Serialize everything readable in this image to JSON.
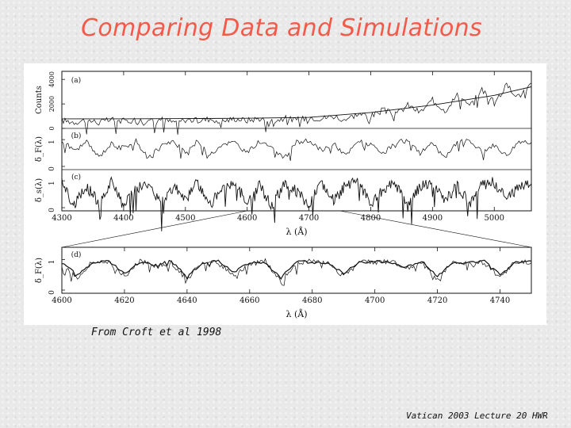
{
  "slide": {
    "title": "Comparing Data and Simulations",
    "credit": "From Croft et al 1998",
    "footer": "Vatican 2003 Lecture 20 HWR"
  },
  "chart_data": [
    {
      "type": "line",
      "panel_label": "(a)",
      "ylabel": "Counts",
      "yticks": [
        "0",
        "2000",
        "4000"
      ],
      "ylim": [
        0,
        4400
      ],
      "xlim": [
        4300,
        5060
      ],
      "xticks": [
        4300,
        4400,
        4500,
        4600,
        4700,
        4800,
        4900,
        5000
      ],
      "series": [
        {
          "style": "spectrum",
          "x": [
            4300,
            4320,
            4340,
            4360,
            4380,
            4400,
            4420,
            4440,
            4460,
            4480,
            4500,
            4520,
            4540,
            4560,
            4580,
            4600,
            4620,
            4640,
            4660,
            4680,
            4700,
            4720,
            4740,
            4760,
            4780,
            4800,
            4820,
            4840,
            4860,
            4880,
            4900,
            4920,
            4940,
            4960,
            4980,
            5000,
            5020,
            5040,
            5060
          ],
          "y": [
            650,
            520,
            700,
            480,
            720,
            600,
            700,
            560,
            760,
            500,
            740,
            620,
            790,
            580,
            800,
            650,
            820,
            600,
            840,
            680,
            900,
            820,
            1000,
            760,
            1200,
            980,
            1500,
            1100,
            1900,
            1300,
            2300,
            1500,
            2700,
            1800,
            3200,
            2100,
            3500,
            2600,
            3700
          ]
        },
        {
          "style": "continuum",
          "x": [
            4300,
            4400,
            4500,
            4600,
            4700,
            4800,
            4900,
            5000,
            5060
          ],
          "y": [
            780,
            780,
            800,
            830,
            900,
            1300,
            1900,
            2700,
            3400
          ]
        }
      ]
    },
    {
      "type": "line",
      "panel_label": "(b)",
      "ylabel": "δ_F(λ)",
      "yticks": [
        "0",
        "1"
      ],
      "ylim": [
        0,
        1.3
      ],
      "x": [
        4300,
        4320,
        4340,
        4360,
        4380,
        4400,
        4420,
        4440,
        4460,
        4480,
        4500,
        4520,
        4540,
        4560,
        4580,
        4600,
        4620,
        4640,
        4660,
        4680,
        4700,
        4720,
        4740,
        4760,
        4780,
        4800,
        4820,
        4840,
        4860,
        4880,
        4900,
        4920,
        4940,
        4960,
        4980,
        5000,
        5020,
        5040,
        5060
      ],
      "values": [
        0.95,
        0.6,
        0.9,
        0.35,
        0.85,
        0.7,
        0.95,
        0.3,
        0.8,
        0.9,
        0.55,
        0.95,
        0.4,
        0.85,
        0.9,
        0.5,
        0.95,
        0.75,
        0.3,
        0.9,
        0.95,
        0.6,
        0.85,
        0.4,
        0.95,
        0.8,
        0.45,
        0.9,
        0.95,
        0.5,
        0.85,
        0.3,
        0.9,
        0.95,
        0.55,
        0.8,
        0.4,
        0.95,
        0.9
      ]
    },
    {
      "type": "line",
      "panel_label": "(c)",
      "ylabel": "δ_s(λ)",
      "yticks": [
        "0",
        "1"
      ],
      "ylim": [
        0,
        1.3
      ],
      "x": [
        4300,
        4320,
        4340,
        4360,
        4380,
        4400,
        4420,
        4440,
        4460,
        4480,
        4500,
        4520,
        4540,
        4560,
        4580,
        4600,
        4620,
        4640,
        4660,
        4680,
        4700,
        4720,
        4740,
        4760,
        4780,
        4800,
        4820,
        4840,
        4860,
        4880,
        4900,
        4920,
        4940,
        4960,
        4980,
        5000,
        5020,
        5040,
        5060
      ],
      "values": [
        0.9,
        0.1,
        0.8,
        0.2,
        0.95,
        0.05,
        0.7,
        0.9,
        0.15,
        0.85,
        0.3,
        0.95,
        0.1,
        0.75,
        0.9,
        0.2,
        0.85,
        0.05,
        0.95,
        0.6,
        0.1,
        0.9,
        0.25,
        0.85,
        0.95,
        0.15,
        0.7,
        0.9,
        0.05,
        0.8,
        0.95,
        0.2,
        0.9,
        0.1,
        0.85,
        0.95,
        0.3,
        0.8,
        0.9
      ]
    },
    {
      "type": "line",
      "panel_label": "(d)",
      "ylabel": "δ_F(λ)",
      "yticks": [
        "0",
        "1"
      ],
      "ylim": [
        0,
        1.3
      ],
      "xlim": [
        4600,
        4750
      ],
      "xticks": [
        4600,
        4620,
        4640,
        4660,
        4680,
        4700,
        4720,
        4740
      ],
      "xlabel": "λ (Å)",
      "series": [
        {
          "style": "observed",
          "x": [
            4600,
            4605,
            4610,
            4615,
            4620,
            4625,
            4630,
            4635,
            4640,
            4645,
            4650,
            4655,
            4660,
            4665,
            4670,
            4675,
            4680,
            4685,
            4690,
            4695,
            4700,
            4705,
            4710,
            4715,
            4720,
            4725,
            4730,
            4735,
            4740,
            4745,
            4750
          ],
          "values": [
            0.85,
            0.4,
            0.95,
            0.9,
            0.45,
            0.95,
            0.8,
            0.9,
            0.35,
            0.95,
            0.9,
            0.5,
            0.85,
            0.95,
            0.3,
            0.9,
            0.95,
            0.85,
            0.45,
            0.95,
            0.9,
            0.95,
            0.7,
            0.9,
            0.35,
            0.95,
            0.85,
            0.9,
            0.4,
            0.95,
            0.9
          ]
        },
        {
          "style": "simulated",
          "x": [
            4600,
            4605,
            4610,
            4615,
            4620,
            4625,
            4630,
            4635,
            4640,
            4645,
            4650,
            4655,
            4660,
            4665,
            4670,
            4675,
            4680,
            4685,
            4690,
            4695,
            4700,
            4705,
            4710,
            4715,
            4720,
            4725,
            4730,
            4735,
            4740,
            4745,
            4750
          ],
          "values": [
            0.9,
            0.5,
            0.9,
            0.95,
            0.55,
            0.9,
            0.85,
            0.95,
            0.45,
            0.9,
            0.95,
            0.6,
            0.9,
            0.9,
            0.4,
            0.95,
            0.9,
            0.9,
            0.55,
            0.9,
            0.95,
            0.9,
            0.75,
            0.95,
            0.45,
            0.9,
            0.9,
            0.95,
            0.5,
            0.9,
            0.95
          ]
        }
      ]
    }
  ],
  "axes_labels": {
    "upper_xlabel": "λ (Å)",
    "lower_xlabel": "λ (Å)",
    "lower_xtick_labels": [
      "4600",
      "4620",
      "4640",
      "4660",
      "4680",
      "4700",
      "4720",
      "4740"
    ]
  },
  "colors": {
    "title": "#f25a4a",
    "ink": "#111111",
    "figure_bg": "#ffffff"
  }
}
